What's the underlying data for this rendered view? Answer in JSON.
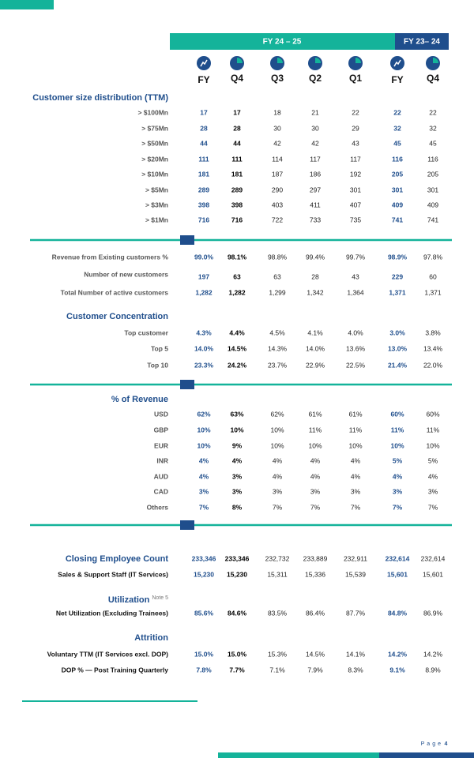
{
  "header": {
    "group1": "FY 24 – 25",
    "group2": "FY 23– 24",
    "columns": [
      "FY",
      "Q4",
      "Q3",
      "Q2",
      "Q1",
      "FY",
      "Q4"
    ]
  },
  "sections": [
    {
      "title": "Customer size distribution (TTM)",
      "rows": [
        {
          "label": "> $100Mn",
          "values": [
            "17",
            "17",
            "18",
            "21",
            "22",
            "22",
            "22"
          ]
        },
        {
          "label": "> $75Mn",
          "values": [
            "28",
            "28",
            "30",
            "30",
            "29",
            "32",
            "32"
          ]
        },
        {
          "label": "> $50Mn",
          "values": [
            "44",
            "44",
            "42",
            "42",
            "43",
            "45",
            "45"
          ]
        },
        {
          "label": "> $20Mn",
          "values": [
            "111",
            "111",
            "114",
            "117",
            "117",
            "116",
            "116"
          ]
        },
        {
          "label": "> $10Mn",
          "values": [
            "181",
            "181",
            "187",
            "186",
            "192",
            "205",
            "205"
          ]
        },
        {
          "label": "> $5Mn",
          "values": [
            "289",
            "289",
            "290",
            "297",
            "301",
            "301",
            "301"
          ]
        },
        {
          "label": "> $3Mn",
          "values": [
            "398",
            "398",
            "403",
            "411",
            "407",
            "409",
            "409"
          ]
        },
        {
          "label": "> $1Mn",
          "values": [
            "716",
            "716",
            "722",
            "733",
            "735",
            "741",
            "741"
          ]
        }
      ]
    },
    {
      "rows": [
        {
          "label": "Revenue from Existing customers %",
          "values": [
            "99.0%",
            "98.1%",
            "98.8%",
            "99.4%",
            "99.7%",
            "98.9%",
            "97.8%"
          ]
        },
        {
          "label": "Number of new customers",
          "values": [
            "197",
            "63",
            "63",
            "28",
            "43",
            "229",
            "60"
          ]
        },
        {
          "label": "Total Number of active customers",
          "values": [
            "1,282",
            "1,282",
            "1,299",
            "1,342",
            "1,364",
            "1,371",
            "1,371"
          ]
        }
      ]
    },
    {
      "title": "Customer Concentration",
      "rows": [
        {
          "label": "Top customer",
          "values": [
            "4.3%",
            "4.4%",
            "4.5%",
            "4.1%",
            "4.0%",
            "3.0%",
            "3.8%"
          ]
        },
        {
          "label": "Top 5",
          "values": [
            "14.0%",
            "14.5%",
            "14.3%",
            "14.0%",
            "13.6%",
            "13.0%",
            "13.4%"
          ]
        },
        {
          "label": "Top 10",
          "values": [
            "23.3%",
            "24.2%",
            "23.7%",
            "22.9%",
            "22.5%",
            "21.4%",
            "22.0%"
          ]
        }
      ]
    },
    {
      "title": "% of Revenue",
      "rows": [
        {
          "label": "USD",
          "values": [
            "62%",
            "63%",
            "62%",
            "61%",
            "61%",
            "60%",
            "60%"
          ]
        },
        {
          "label": "GBP",
          "values": [
            "10%",
            "10%",
            "10%",
            "11%",
            "11%",
            "11%",
            "11%"
          ]
        },
        {
          "label": "EUR",
          "values": [
            "10%",
            "9%",
            "10%",
            "10%",
            "10%",
            "10%",
            "10%"
          ]
        },
        {
          "label": "INR",
          "values": [
            "4%",
            "4%",
            "4%",
            "4%",
            "4%",
            "5%",
            "5%"
          ]
        },
        {
          "label": "AUD",
          "values": [
            "4%",
            "3%",
            "4%",
            "4%",
            "4%",
            "4%",
            "4%"
          ]
        },
        {
          "label": "CAD",
          "values": [
            "3%",
            "3%",
            "3%",
            "3%",
            "3%",
            "3%",
            "3%"
          ]
        },
        {
          "label": "Others",
          "values": [
            "7%",
            "8%",
            "7%",
            "7%",
            "7%",
            "7%",
            "7%"
          ]
        }
      ]
    },
    {
      "title": "Closing Employee Count",
      "values": [
        "233,346",
        "233,346",
        "232,732",
        "233,889",
        "232,911",
        "232,614",
        "232,614"
      ],
      "rows": [
        {
          "label": "Sales & Support Staff (IT Services)",
          "values": [
            "15,230",
            "15,230",
            "15,311",
            "15,336",
            "15,539",
            "15,601",
            "15,601"
          ]
        }
      ]
    },
    {
      "title": "Utilization",
      "note": "Note 5",
      "rows": [
        {
          "label": "Net Utilization (Excluding Trainees)",
          "values": [
            "85.6%",
            "84.6%",
            "83.5%",
            "86.4%",
            "87.7%",
            "84.8%",
            "86.9%"
          ]
        }
      ]
    },
    {
      "title": "Attrition",
      "rows": [
        {
          "label": "Voluntary TTM (IT Services excl. DOP)",
          "values": [
            "15.0%",
            "15.0%",
            "15.3%",
            "14.5%",
            "14.1%",
            "14.2%",
            "14.2%"
          ]
        },
        {
          "label": "DOP % — Post Training Quarterly",
          "values": [
            "7.8%",
            "7.7%",
            "7.1%",
            "7.9%",
            "8.3%",
            "9.1%",
            "8.9%"
          ]
        }
      ]
    }
  ],
  "footer": {
    "page_word": "Page",
    "page_number": "4"
  }
}
